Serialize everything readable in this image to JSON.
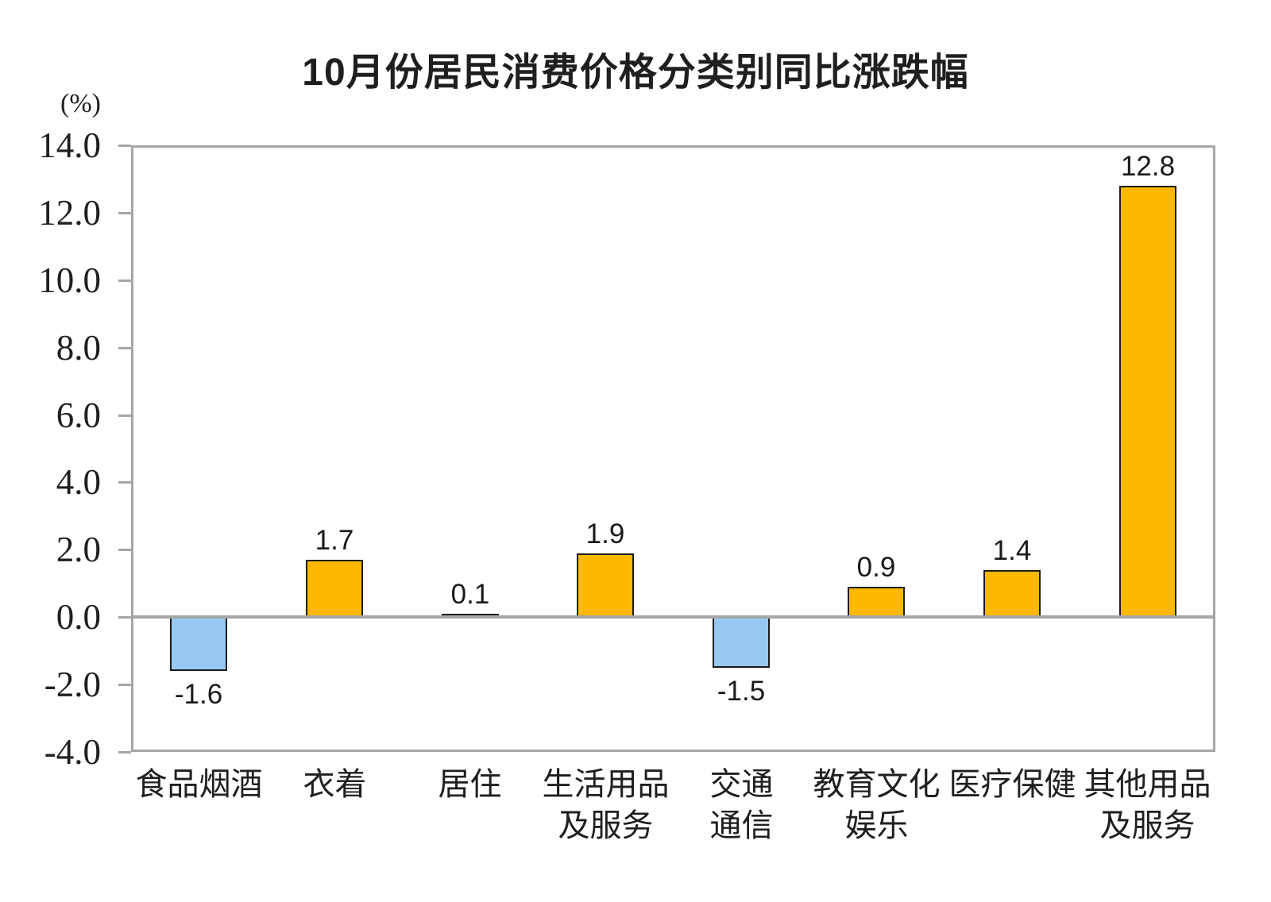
{
  "chart_data": {
    "type": "bar",
    "title": "10月份居民消费价格分类别同比涨跌幅",
    "unit_label": "(%)",
    "categories": [
      "食品烟酒",
      "衣着",
      "居住",
      "生活用品及服务",
      "交通通信",
      "教育文化娱乐",
      "医疗保健",
      "其他用品及服务"
    ],
    "category_lines": [
      [
        "食品烟酒"
      ],
      [
        "衣着"
      ],
      [
        "居住"
      ],
      [
        "生活用品",
        "及服务"
      ],
      [
        "交通",
        "通信"
      ],
      [
        "教育文化",
        "娱乐"
      ],
      [
        "医疗保健"
      ],
      [
        "其他用品",
        "及服务"
      ]
    ],
    "values": [
      -1.6,
      1.7,
      0.1,
      1.9,
      -1.5,
      0.9,
      1.4,
      12.8
    ],
    "value_labels": [
      "-1.6",
      "1.7",
      "0.1",
      "1.9",
      "-1.5",
      "0.9",
      "1.4",
      "12.8"
    ],
    "xlabel": "",
    "ylabel": "(%)",
    "ylim": [
      -4.0,
      14.0
    ],
    "y_tick_step": 2.0,
    "y_ticks": [
      14.0,
      12.0,
      10.0,
      8.0,
      6.0,
      4.0,
      2.0,
      0.0,
      -2.0,
      -4.0
    ],
    "y_tick_labels": [
      "14.0",
      "12.0",
      "10.0",
      "8.0",
      "6.0",
      "4.0",
      "2.0",
      "0.0",
      "-2.0",
      "-4.0"
    ],
    "grid": false,
    "legend": "none",
    "colors": {
      "positive_fill": "#FCB900",
      "negative_fill": "#97C8F2",
      "bar_border": "#1C1C1C",
      "axis_frame": "#A6A6A6",
      "zero_line": "#A6A6A6",
      "text": "#1A1A1A"
    }
  }
}
